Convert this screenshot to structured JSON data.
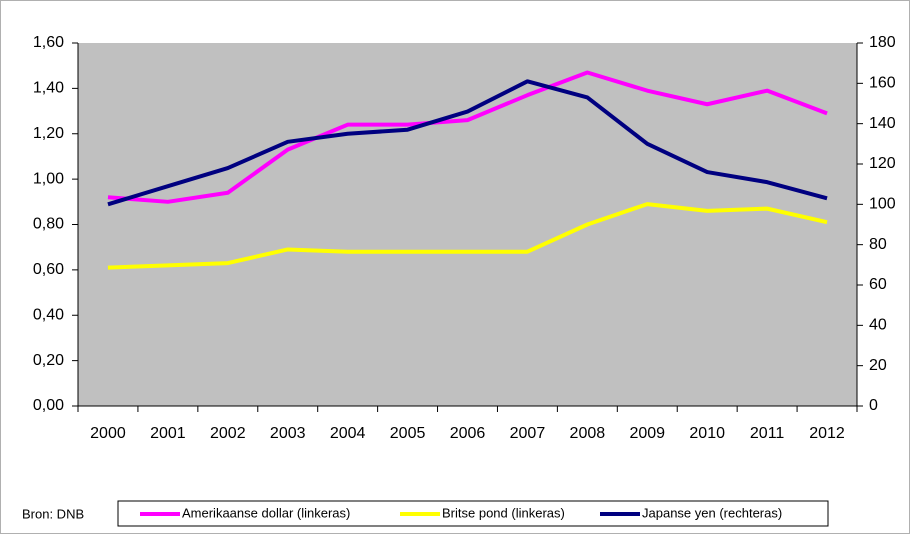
{
  "chart_data": {
    "type": "line",
    "categories": [
      "2000",
      "2001",
      "2002",
      "2003",
      "2004",
      "2005",
      "2006",
      "2007",
      "2008",
      "2009",
      "2010",
      "2011",
      "2012"
    ],
    "series": [
      {
        "name": "Amerikaanse dollar (linkeras)",
        "color": "#ff00ff",
        "values": [
          0.92,
          0.9,
          0.94,
          1.13,
          1.24,
          1.24,
          1.26,
          1.37,
          1.47,
          1.39,
          1.33,
          1.39,
          1.29
        ]
      },
      {
        "name": "Britse pond (linkeras)",
        "color": "#ffff00",
        "values": [
          0.61,
          0.62,
          0.63,
          0.69,
          0.68,
          0.68,
          0.68,
          0.68,
          0.8,
          0.89,
          0.86,
          0.87,
          0.81
        ]
      },
      {
        "name": "Japanse yen (rechteras)",
        "color": "#000080",
        "axis": "y2",
        "values": [
          100,
          109,
          118,
          131,
          135,
          137,
          146,
          161,
          153,
          130,
          116,
          111,
          103
        ]
      }
    ],
    "ylim": [
      0,
      1.6
    ],
    "yticks": [
      {
        "value": 0,
        "label": "0,00"
      },
      {
        "value": 0.2,
        "label": "0,20"
      },
      {
        "value": 0.4,
        "label": "0,40"
      },
      {
        "value": 0.6,
        "label": "0,60"
      },
      {
        "value": 0.8,
        "label": "0,80"
      },
      {
        "value": 1,
        "label": "1,00"
      },
      {
        "value": 1.2,
        "label": "1,20"
      },
      {
        "value": 1.4,
        "label": "1,40"
      },
      {
        "value": 1.6,
        "label": "1,60"
      }
    ],
    "y2lim": [
      0,
      180
    ],
    "y2ticks": [
      0,
      20,
      40,
      60,
      80,
      100,
      120,
      140,
      160,
      180
    ],
    "plot_background": "#c0c0c0",
    "legend": "bottom",
    "source": "Bron: DNB"
  }
}
